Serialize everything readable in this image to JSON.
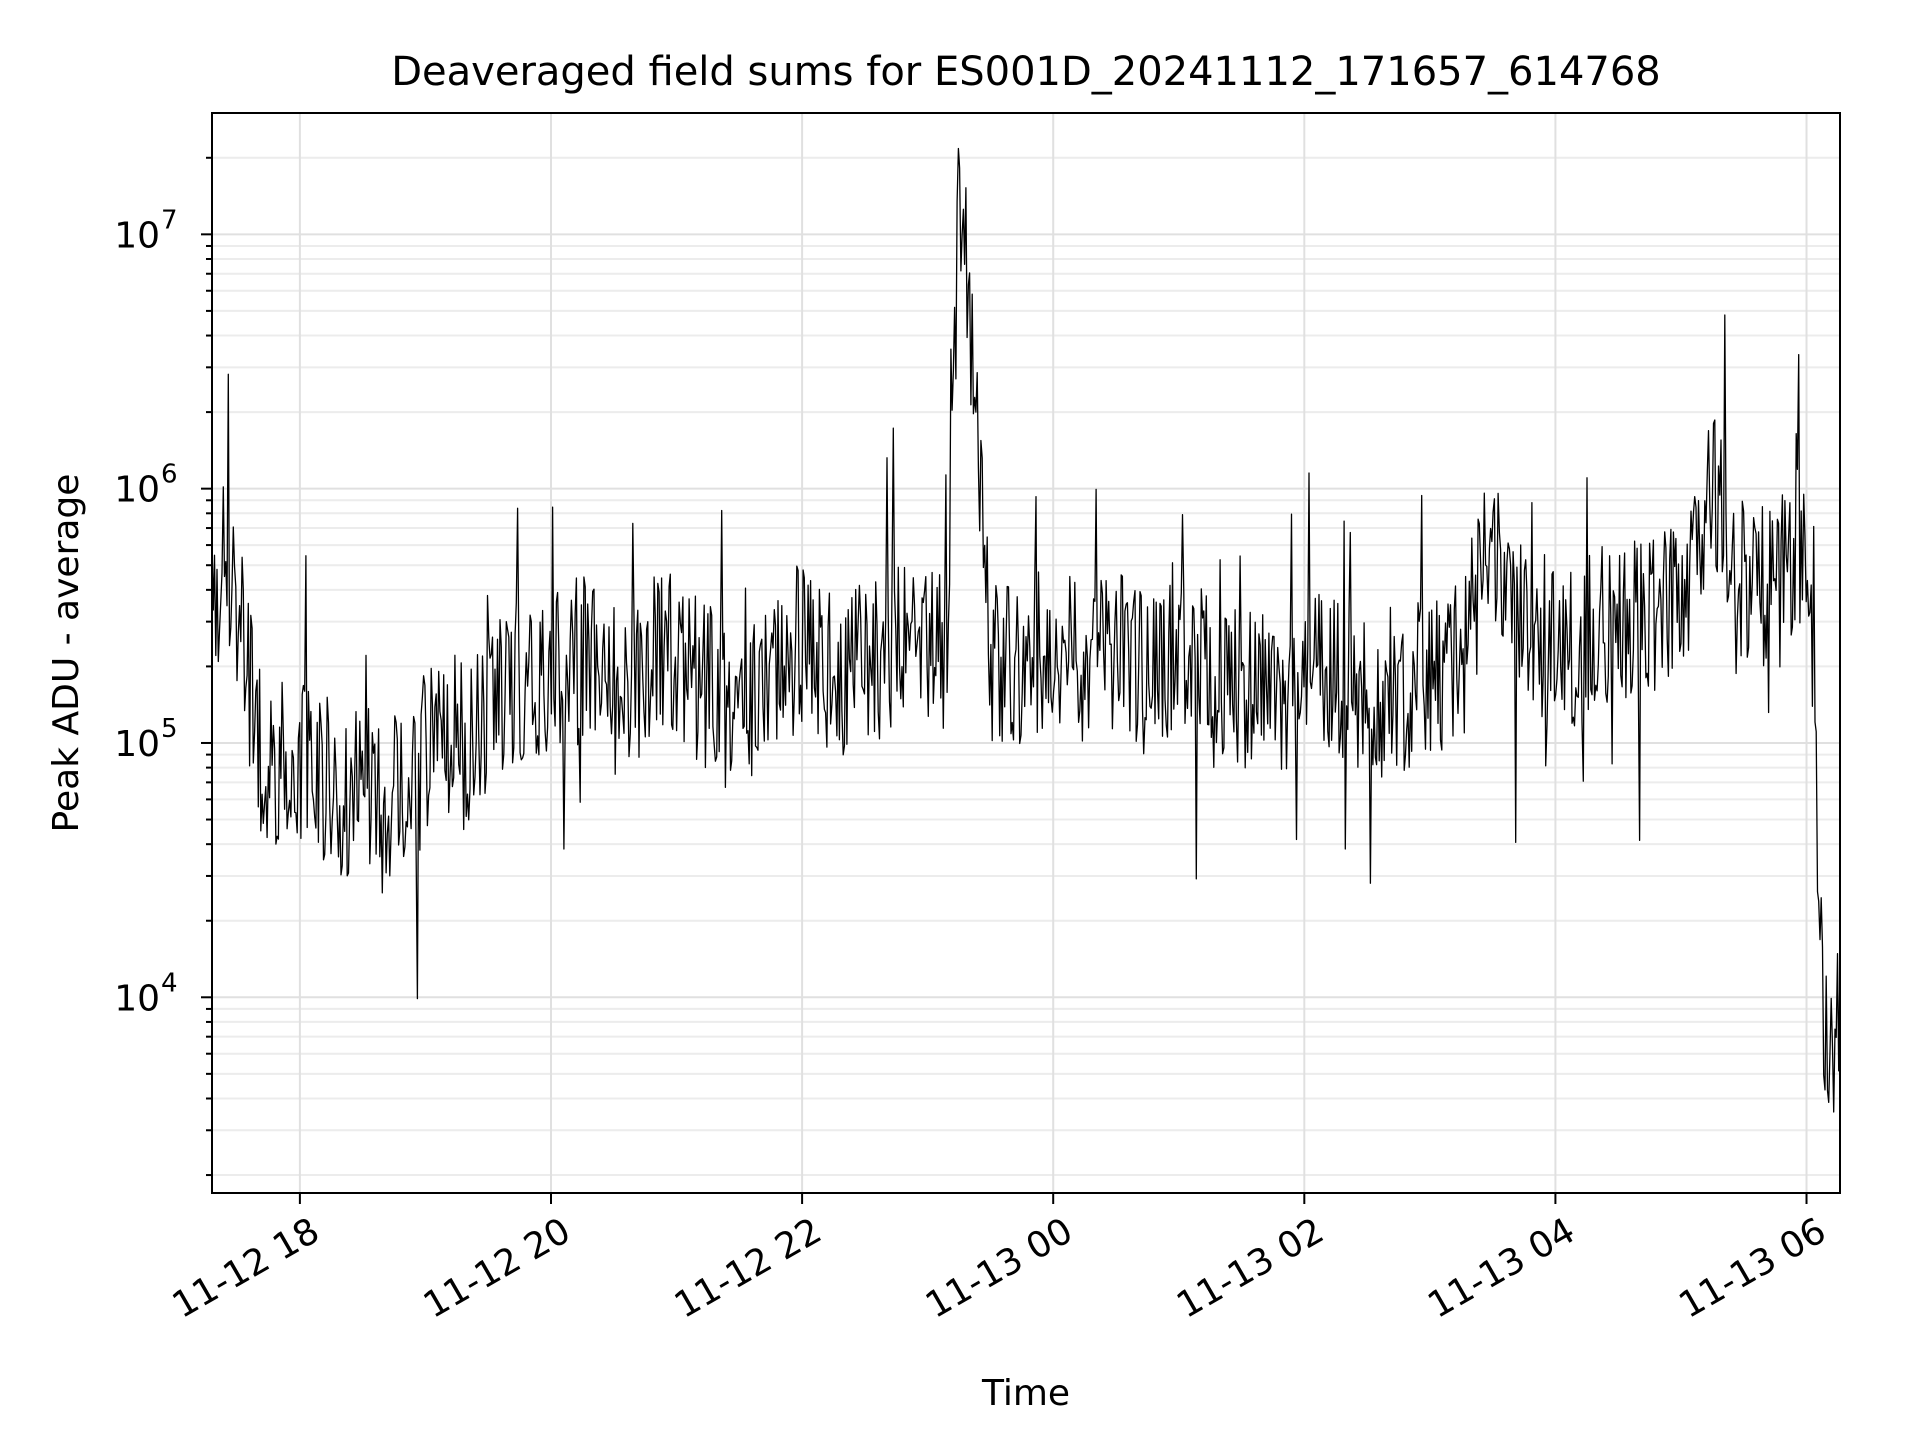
{
  "chart_data": {
    "type": "line",
    "title": "Deaveraged field sums for ES001D_20241112_171657_614768",
    "xlabel": "Time",
    "ylabel": "Peak ADU - average",
    "yscale": "log",
    "ylim": [
      1700,
      30000000
    ],
    "xlim": [
      "2024-11-12 17:18",
      "2024-11-13 06:16"
    ],
    "grid": "major and minor",
    "legend": "none",
    "x_ticks": [
      {
        "value": "2024-11-12 18:00",
        "label": "11-12 18"
      },
      {
        "value": "2024-11-12 20:00",
        "label": "11-12 20"
      },
      {
        "value": "2024-11-12 22:00",
        "label": "11-12 22"
      },
      {
        "value": "2024-11-13 00:00",
        "label": "11-13 00"
      },
      {
        "value": "2024-11-13 02:00",
        "label": "11-13 02"
      },
      {
        "value": "2024-11-13 04:00",
        "label": "11-13 04"
      },
      {
        "value": "2024-11-13 06:00",
        "label": "11-13 06"
      }
    ],
    "y_ticks": [
      {
        "value": 10000,
        "base": "10",
        "exp": "4"
      },
      {
        "value": 100000,
        "base": "10",
        "exp": "5"
      },
      {
        "value": 1000000,
        "base": "10",
        "exp": "6"
      },
      {
        "value": 10000000,
        "base": "10",
        "exp": "7"
      }
    ],
    "series": [
      {
        "color": "#000000",
        "x": [
          "2024-11-12 17:18",
          "2024-11-12 17:24",
          "2024-11-12 17:30",
          "2024-11-12 17:36",
          "2024-11-12 17:42",
          "2024-11-12 17:48",
          "2024-11-12 17:54",
          "2024-11-12 18:00",
          "2024-11-12 18:10",
          "2024-11-12 18:20",
          "2024-11-12 18:30",
          "2024-11-12 18:40",
          "2024-11-12 18:50",
          "2024-11-12 19:00",
          "2024-11-12 19:10",
          "2024-11-12 19:20",
          "2024-11-12 19:30",
          "2024-11-12 19:40",
          "2024-11-12 19:50",
          "2024-11-12 20:00",
          "2024-11-12 20:15",
          "2024-11-12 20:30",
          "2024-11-12 20:45",
          "2024-11-12 21:00",
          "2024-11-12 21:15",
          "2024-11-12 21:30",
          "2024-11-12 21:45",
          "2024-11-12 22:00",
          "2024-11-12 22:15",
          "2024-11-12 22:30",
          "2024-11-12 22:45",
          "2024-11-12 23:00",
          "2024-11-12 23:10",
          "2024-11-12 23:15",
          "2024-11-12 23:30",
          "2024-11-12 23:45",
          "2024-11-13 00:00",
          "2024-11-13 00:15",
          "2024-11-13 00:30",
          "2024-11-13 00:45",
          "2024-11-13 01:00",
          "2024-11-13 01:15",
          "2024-11-13 01:30",
          "2024-11-13 01:45",
          "2024-11-13 02:00",
          "2024-11-13 02:15",
          "2024-11-13 02:30",
          "2024-11-13 02:45",
          "2024-11-13 03:00",
          "2024-11-13 03:15",
          "2024-11-13 03:30",
          "2024-11-13 03:45",
          "2024-11-13 04:00",
          "2024-11-13 04:15",
          "2024-11-13 04:30",
          "2024-11-13 04:45",
          "2024-11-13 05:00",
          "2024-11-13 05:15",
          "2024-11-13 05:30",
          "2024-11-13 05:45",
          "2024-11-13 06:00",
          "2024-11-13 06:04",
          "2024-11-13 06:08",
          "2024-11-13 06:12",
          "2024-11-13 06:16"
        ],
        "y": [
          420000,
          480000,
          350000,
          160000,
          85000,
          70000,
          90000,
          85000,
          75000,
          60000,
          70000,
          55000,
          75000,
          85000,
          110000,
          90000,
          120000,
          170000,
          150000,
          190000,
          220000,
          160000,
          200000,
          230000,
          160000,
          130000,
          190000,
          240000,
          180000,
          200000,
          260000,
          230000,
          240000,
          20000000,
          200000,
          210000,
          230000,
          200000,
          220000,
          180000,
          260000,
          170000,
          150000,
          160000,
          190000,
          180000,
          150000,
          160000,
          180000,
          210000,
          700000,
          280000,
          250000,
          260000,
          300000,
          310000,
          350000,
          900000,
          450000,
          400000,
          700000,
          80000,
          9000,
          4500,
          10000
        ]
      }
    ]
  }
}
